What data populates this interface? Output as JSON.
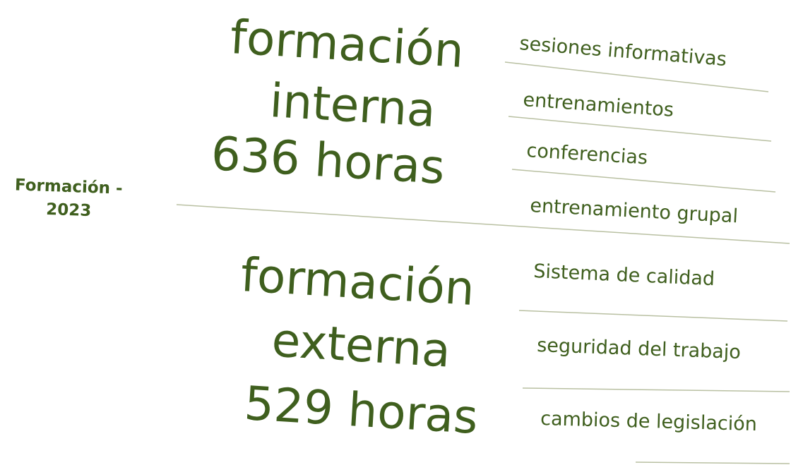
{
  "title": [
    "Formación -",
    "2023"
  ],
  "sections": [
    {
      "heading": [
        "formación",
        "interna",
        "636 horas"
      ],
      "items": [
        "sesiones informativas",
        "entrenamientos",
        "conferencias",
        "entrenamiento grupal"
      ]
    },
    {
      "heading": [
        "formación",
        "externa",
        "529 horas"
      ],
      "items": [
        "Sistema de calidad",
        "seguridad del trabajo",
        "cambios de legislación"
      ]
    }
  ]
}
